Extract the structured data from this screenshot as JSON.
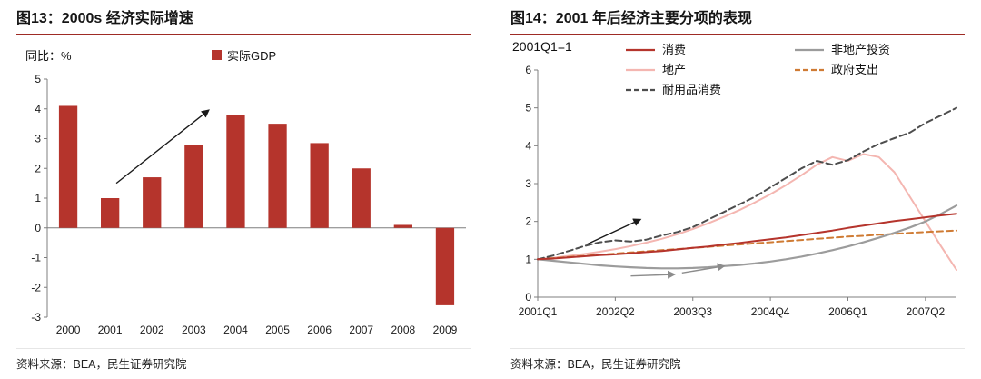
{
  "theme": {
    "accent": "#9e2b25",
    "axis_color": "#7f7f7f",
    "text_color": "#1a1a1a"
  },
  "chart_data": [
    {
      "type": "bar",
      "title": "图13：2000s 经济实际增速",
      "ylabel": "同比：%",
      "legend_label": "实际GDP",
      "source": "资料来源：BEA，民生证券研究院",
      "categories": [
        "2000",
        "2001",
        "2002",
        "2003",
        "2004",
        "2005",
        "2006",
        "2007",
        "2008",
        "2009"
      ],
      "values": [
        4.1,
        1.0,
        1.7,
        2.8,
        3.8,
        3.5,
        2.85,
        2.0,
        0.1,
        -2.6
      ],
      "ylim": [
        -3,
        5
      ],
      "ytick_step": 1,
      "grid": false,
      "bar_color": "#b5342c",
      "annotations": [
        {
          "type": "arrow",
          "color": "#1a1a1a",
          "from": [
            1.15,
            1.5
          ],
          "to": [
            3.35,
            3.95
          ]
        }
      ]
    },
    {
      "type": "line",
      "title": "图14：2001 年后经济主要分项的表现",
      "subtitle": "2001Q1=1",
      "source": "资料来源：BEA，民生证券研究院",
      "x_labels": [
        "2001Q1",
        "2002Q2",
        "2003Q3",
        "2004Q4",
        "2006Q1",
        "2007Q2"
      ],
      "x_label_positions": [
        0,
        5,
        10,
        15,
        20,
        25
      ],
      "n_points": 28,
      "ylim": [
        0,
        6
      ],
      "ytick_step": 1,
      "grid": false,
      "legend_columns": [
        [
          "消费",
          "地产",
          "耐用品消费"
        ],
        [
          "非地产投资",
          "政府支出"
        ]
      ],
      "series": [
        {
          "name": "地产",
          "color": "#f4b6b1",
          "dash": "solid",
          "width": 2,
          "values": [
            1.0,
            1.04,
            1.09,
            1.14,
            1.2,
            1.27,
            1.35,
            1.44,
            1.54,
            1.66,
            1.8,
            1.95,
            2.12,
            2.3,
            2.5,
            2.72,
            2.96,
            3.22,
            3.5,
            3.7,
            3.6,
            3.78,
            3.7,
            3.3,
            2.65,
            2.0,
            1.35,
            0.72
          ]
        },
        {
          "name": "政府支出",
          "color": "#cf7b34",
          "dash": "dashed",
          "width": 2,
          "values": [
            1.0,
            1.03,
            1.06,
            1.09,
            1.12,
            1.15,
            1.18,
            1.21,
            1.24,
            1.27,
            1.3,
            1.33,
            1.36,
            1.39,
            1.42,
            1.45,
            1.48,
            1.51,
            1.54,
            1.57,
            1.6,
            1.62,
            1.65,
            1.67,
            1.7,
            1.72,
            1.74,
            1.76
          ]
        },
        {
          "name": "非地产投资",
          "color": "#9c9c9c",
          "dash": "solid",
          "width": 2.2,
          "values": [
            1.0,
            0.96,
            0.92,
            0.88,
            0.84,
            0.81,
            0.79,
            0.77,
            0.76,
            0.76,
            0.77,
            0.79,
            0.82,
            0.85,
            0.89,
            0.94,
            1.0,
            1.07,
            1.15,
            1.24,
            1.34,
            1.45,
            1.57,
            1.7,
            1.84,
            2.0,
            2.2,
            2.42
          ]
        },
        {
          "name": "耐用品消费",
          "color": "#4d4d4d",
          "dash": "dashed",
          "width": 2,
          "values": [
            1.0,
            1.1,
            1.22,
            1.35,
            1.45,
            1.5,
            1.47,
            1.52,
            1.63,
            1.72,
            1.85,
            2.05,
            2.25,
            2.45,
            2.65,
            2.9,
            3.15,
            3.4,
            3.6,
            3.5,
            3.62,
            3.85,
            4.05,
            4.2,
            4.35,
            4.6,
            4.8,
            5.0
          ]
        },
        {
          "name": "消费",
          "color": "#b5342c",
          "dash": "solid",
          "width": 2,
          "values": [
            1.0,
            1.02,
            1.05,
            1.08,
            1.11,
            1.13,
            1.16,
            1.19,
            1.22,
            1.26,
            1.3,
            1.34,
            1.39,
            1.43,
            1.48,
            1.53,
            1.58,
            1.64,
            1.7,
            1.76,
            1.83,
            1.89,
            1.95,
            2.01,
            2.06,
            2.11,
            2.16,
            2.2
          ]
        }
      ],
      "annotations": [
        {
          "type": "arrow",
          "color": "#1a1a1a",
          "from": [
            3.2,
            1.4
          ],
          "to": [
            6.6,
            2.05
          ]
        },
        {
          "type": "arrow",
          "color": "#8c8c8c",
          "from": [
            6.0,
            0.56
          ],
          "to": [
            8.8,
            0.6
          ]
        },
        {
          "type": "arrow",
          "color": "#8c8c8c",
          "from": [
            9.3,
            0.64
          ],
          "to": [
            12.0,
            0.82
          ]
        }
      ]
    }
  ]
}
